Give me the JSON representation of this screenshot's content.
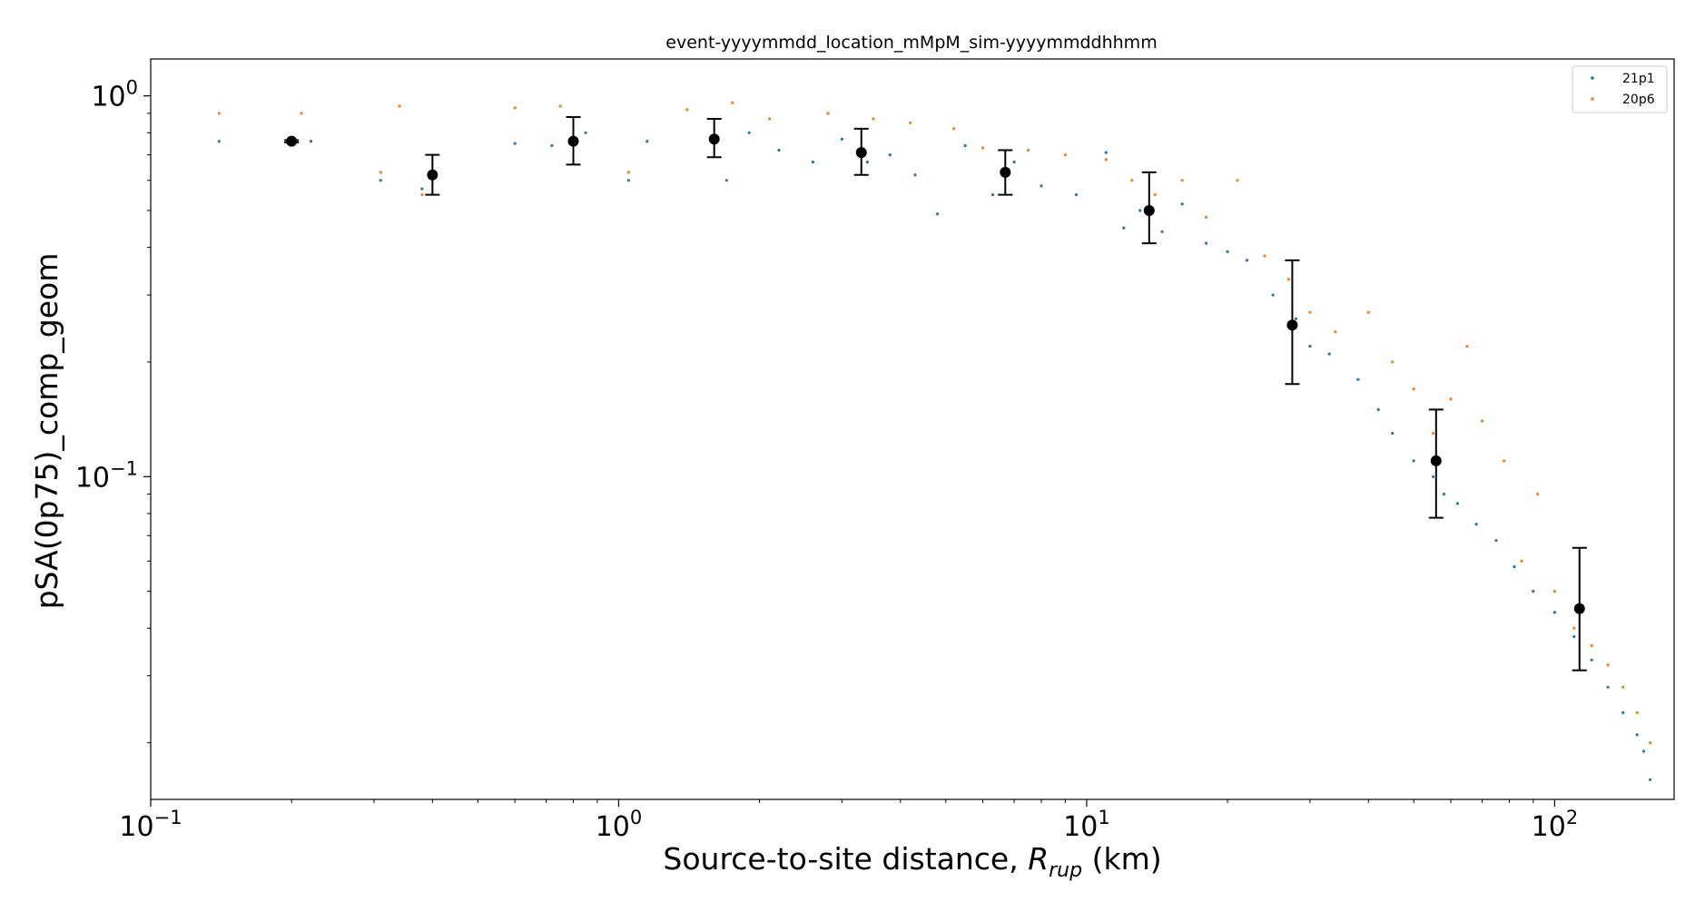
{
  "chart_data": {
    "type": "scatter",
    "title": "event-yyyymmdd_location_mMpM_sim-yyyymmddhhmm",
    "xlabel_main": "Source-to-site distance, ",
    "xlabel_var": "R",
    "xlabel_sub": "rup",
    "xlabel_unit": " (km)",
    "ylabel": "pSA(0p75)_comp_geom",
    "x_scale": "log",
    "y_scale": "log",
    "xlim": [
      0.1,
      180
    ],
    "ylim": [
      0.0142,
      1.25
    ],
    "x_ticks": [
      {
        "value": 0.1,
        "base": "10",
        "exp": "−1"
      },
      {
        "value": 1,
        "base": "10",
        "exp": "0"
      },
      {
        "value": 10,
        "base": "10",
        "exp": "1"
      },
      {
        "value": 100,
        "base": "10",
        "exp": "2"
      }
    ],
    "y_ticks": [
      {
        "value": 0.1,
        "base": "10",
        "exp": "−1"
      },
      {
        "value": 1,
        "base": "10",
        "exp": "0"
      }
    ],
    "legend_position": "top-right",
    "series": [
      {
        "name": "21p1",
        "color": "#1f77b4",
        "points": [
          [
            0.14,
            0.76
          ],
          [
            0.2,
            0.76
          ],
          [
            0.22,
            0.76
          ],
          [
            0.31,
            0.6
          ],
          [
            0.38,
            0.57
          ],
          [
            0.6,
            0.75
          ],
          [
            0.72,
            0.74
          ],
          [
            0.85,
            0.8
          ],
          [
            1.05,
            0.6
          ],
          [
            1.15,
            0.76
          ],
          [
            1.7,
            0.6
          ],
          [
            1.9,
            0.8
          ],
          [
            2.2,
            0.72
          ],
          [
            2.6,
            0.67
          ],
          [
            3.0,
            0.77
          ],
          [
            3.4,
            0.67
          ],
          [
            3.8,
            0.7
          ],
          [
            4.3,
            0.62
          ],
          [
            4.8,
            0.49
          ],
          [
            5.5,
            0.74
          ],
          [
            6.3,
            0.55
          ],
          [
            7.0,
            0.67
          ],
          [
            8.0,
            0.58
          ],
          [
            9.5,
            0.55
          ],
          [
            11.0,
            0.71
          ],
          [
            12.0,
            0.45
          ],
          [
            13.0,
            0.5
          ],
          [
            14.5,
            0.44
          ],
          [
            16.0,
            0.52
          ],
          [
            18.0,
            0.41
          ],
          [
            20.0,
            0.39
          ],
          [
            22.0,
            0.37
          ],
          [
            25.0,
            0.3
          ],
          [
            28.0,
            0.26
          ],
          [
            30.0,
            0.22
          ],
          [
            33.0,
            0.21
          ],
          [
            38.0,
            0.18
          ],
          [
            42.0,
            0.15
          ],
          [
            45.0,
            0.13
          ],
          [
            50.0,
            0.11
          ],
          [
            55.0,
            0.1
          ],
          [
            58.0,
            0.09
          ],
          [
            62.0,
            0.085
          ],
          [
            68.0,
            0.075
          ],
          [
            75.0,
            0.068
          ],
          [
            82.0,
            0.058
          ],
          [
            90.0,
            0.05
          ],
          [
            100.0,
            0.044
          ],
          [
            110.0,
            0.038
          ],
          [
            120.0,
            0.033
          ],
          [
            130.0,
            0.028
          ],
          [
            140.0,
            0.024
          ],
          [
            150.0,
            0.021
          ],
          [
            155.0,
            0.019
          ],
          [
            160.0,
            0.016
          ]
        ]
      },
      {
        "name": "20p6",
        "color": "#ff7f0e",
        "points": [
          [
            0.14,
            0.9
          ],
          [
            0.2,
            0.77
          ],
          [
            0.21,
            0.9
          ],
          [
            0.31,
            0.63
          ],
          [
            0.34,
            0.94
          ],
          [
            0.38,
            0.55
          ],
          [
            0.6,
            0.93
          ],
          [
            0.75,
            0.94
          ],
          [
            1.05,
            0.63
          ],
          [
            1.4,
            0.92
          ],
          [
            1.75,
            0.96
          ],
          [
            2.1,
            0.87
          ],
          [
            2.8,
            0.9
          ],
          [
            3.5,
            0.87
          ],
          [
            4.2,
            0.85
          ],
          [
            5.2,
            0.82
          ],
          [
            6.0,
            0.73
          ],
          [
            7.5,
            0.72
          ],
          [
            9.0,
            0.7
          ],
          [
            11.0,
            0.68
          ],
          [
            12.5,
            0.6
          ],
          [
            14.0,
            0.55
          ],
          [
            16.0,
            0.6
          ],
          [
            18.0,
            0.48
          ],
          [
            21.0,
            0.6
          ],
          [
            24.0,
            0.38
          ],
          [
            27.0,
            0.33
          ],
          [
            30.0,
            0.27
          ],
          [
            34.0,
            0.24
          ],
          [
            40.0,
            0.27
          ],
          [
            45.0,
            0.2
          ],
          [
            50.0,
            0.17
          ],
          [
            55.0,
            0.13
          ],
          [
            60.0,
            0.16
          ],
          [
            65.0,
            0.22
          ],
          [
            70.0,
            0.14
          ],
          [
            78.0,
            0.11
          ],
          [
            85.0,
            0.06
          ],
          [
            92.0,
            0.09
          ],
          [
            100.0,
            0.05
          ],
          [
            110.0,
            0.04
          ],
          [
            120.0,
            0.036
          ],
          [
            130.0,
            0.032
          ],
          [
            140.0,
            0.028
          ],
          [
            150.0,
            0.024
          ],
          [
            160.0,
            0.02
          ]
        ]
      }
    ],
    "binned_means": {
      "color": "#000000",
      "points": [
        {
          "x": 0.2,
          "y": 0.76,
          "ylow": 0.755,
          "yhigh": 0.765
        },
        {
          "x": 0.4,
          "y": 0.62,
          "ylow": 0.55,
          "yhigh": 0.7
        },
        {
          "x": 0.8,
          "y": 0.76,
          "ylow": 0.66,
          "yhigh": 0.88
        },
        {
          "x": 1.6,
          "y": 0.77,
          "ylow": 0.69,
          "yhigh": 0.87
        },
        {
          "x": 3.3,
          "y": 0.71,
          "ylow": 0.62,
          "yhigh": 0.82
        },
        {
          "x": 6.7,
          "y": 0.63,
          "ylow": 0.55,
          "yhigh": 0.72
        },
        {
          "x": 13.6,
          "y": 0.5,
          "ylow": 0.41,
          "yhigh": 0.63
        },
        {
          "x": 27.5,
          "y": 0.25,
          "ylow": 0.175,
          "yhigh": 0.37
        },
        {
          "x": 55.8,
          "y": 0.11,
          "ylow": 0.078,
          "yhigh": 0.15
        },
        {
          "x": 113.0,
          "y": 0.045,
          "ylow": 0.031,
          "yhigh": 0.065
        }
      ]
    }
  }
}
